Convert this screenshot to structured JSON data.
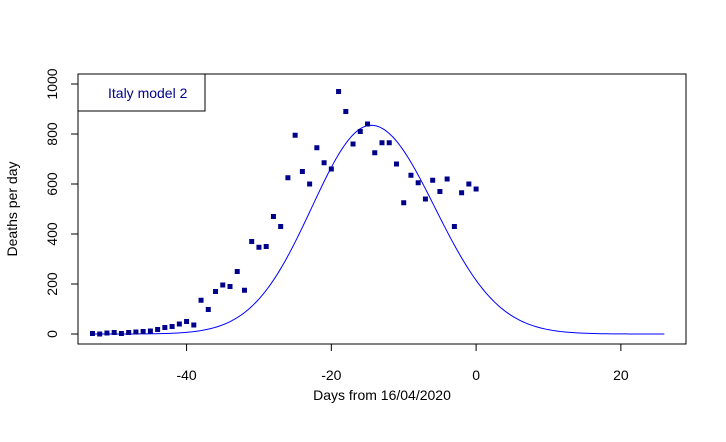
{
  "chart_data": {
    "type": "scatter",
    "xlabel": "Days from 16/04/2020",
    "ylabel": "Deaths per day",
    "xlim": [
      -55,
      29
    ],
    "ylim": [
      -40,
      1040
    ],
    "x_ticks": [
      -40,
      -20,
      0,
      20
    ],
    "y_ticks": [
      0,
      200,
      400,
      600,
      800,
      1000
    ],
    "grid": false,
    "legend": {
      "position": "top-left",
      "label": "Italy model 2"
    },
    "colors": {
      "points": "#00008b",
      "line": "#0000ff",
      "legend_text": "#00008b"
    },
    "series": [
      {
        "type": "scatter",
        "x": [
          -53,
          -52,
          -51,
          -50,
          -49,
          -48,
          -47,
          -46,
          -45,
          -44,
          -43,
          -42,
          -41,
          -40,
          -39,
          -38,
          -37,
          -36,
          -35,
          -34,
          -33,
          -32,
          -31,
          -30,
          -29,
          -28,
          -27,
          -26,
          -25,
          -24,
          -23,
          -22,
          -21,
          -20,
          -19,
          -18,
          -17,
          -16,
          -15,
          -14,
          -13,
          -12,
          -11,
          -10,
          -9,
          -8,
          -7,
          -6,
          -5,
          -4,
          -3,
          -2,
          -1,
          0
        ],
        "y": [
          2,
          0,
          4,
          6,
          2,
          6,
          8,
          10,
          12,
          18,
          26,
          30,
          40,
          50,
          36,
          135,
          98,
          170,
          196,
          190,
          250,
          175,
          370,
          347,
          350,
          470,
          430,
          625,
          795,
          650,
          600,
          745,
          685,
          660,
          970,
          890,
          760,
          810,
          840,
          725,
          765,
          765,
          680,
          525,
          635,
          605,
          540,
          615,
          570,
          620,
          430,
          565,
          600,
          580
        ]
      },
      {
        "type": "line",
        "name": "",
        "model": {
          "peak_x": -14.5,
          "peak_y": 835,
          "sigma_left": 8.2,
          "sigma_right": 8.8,
          "x_start": -53,
          "x_end": 26
        }
      }
    ]
  }
}
